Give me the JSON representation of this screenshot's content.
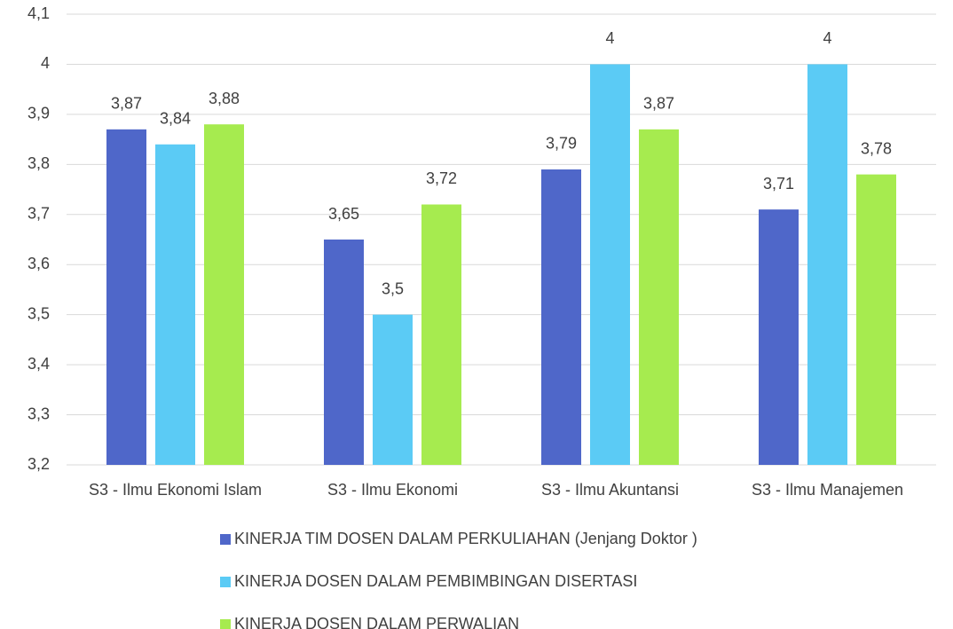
{
  "chart_data": {
    "type": "bar",
    "categories": [
      "S3 - Ilmu Ekonomi Islam",
      "S3 - Ilmu Ekonomi",
      "S3 - Ilmu Akuntansi",
      "S3 - Ilmu Manajemen"
    ],
    "series": [
      {
        "name": "KINERJA TIM DOSEN DALAM PERKULIAHAN (Jenjang Doktor )",
        "color": "#4f67c9",
        "values": [
          3.87,
          3.65,
          3.79,
          3.71
        ],
        "value_labels": [
          "3,87",
          "3,65",
          "3,79",
          "3,71"
        ]
      },
      {
        "name": "KINERJA DOSEN DALAM PEMBIMBINGAN DISERTASI",
        "color": "#5bcbf5",
        "values": [
          3.84,
          3.5,
          4,
          4
        ],
        "value_labels": [
          "3,84",
          "3,5",
          "4",
          "4"
        ]
      },
      {
        "name": "KINERJA DOSEN DALAM PERWALIAN",
        "color": "#a6eb4f",
        "values": [
          3.88,
          3.72,
          3.87,
          3.78
        ],
        "value_labels": [
          "3,88",
          "3,72",
          "3,87",
          "3,78"
        ]
      }
    ],
    "ylim": [
      3.2,
      4.1
    ],
    "yticks": [
      {
        "value": 3.2,
        "label": "3,2"
      },
      {
        "value": 3.3,
        "label": "3,3"
      },
      {
        "value": 3.4,
        "label": "3,4"
      },
      {
        "value": 3.5,
        "label": "3,5"
      },
      {
        "value": 3.6,
        "label": "3,6"
      },
      {
        "value": 3.7,
        "label": "3,7"
      },
      {
        "value": 3.8,
        "label": "3,8"
      },
      {
        "value": 3.9,
        "label": "3,9"
      },
      4,
      {
        "value": 4.1,
        "label": "4,1"
      }
    ],
    "grid": true,
    "legend": "bottom"
  }
}
